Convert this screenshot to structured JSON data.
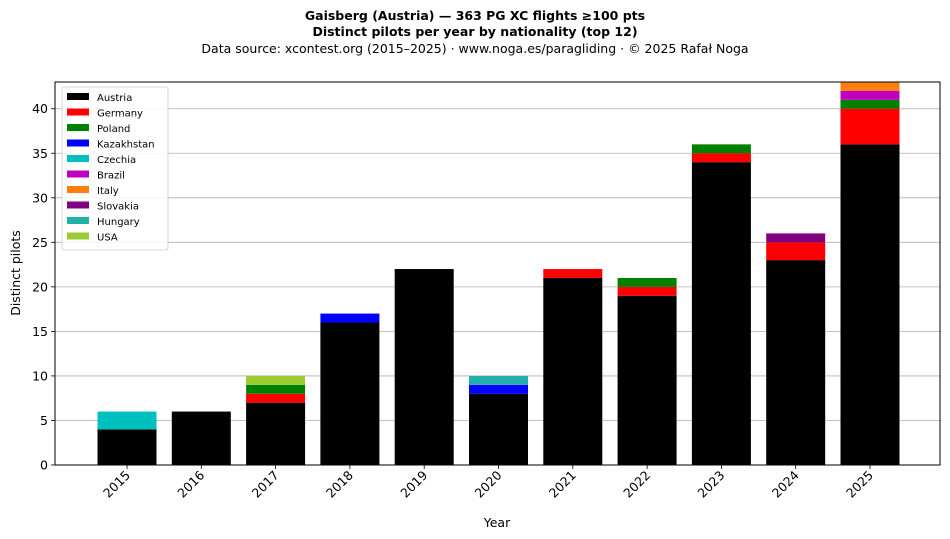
{
  "title": "Gaisberg (Austria)  —  363 PG XC flights ≥100 pts",
  "subtitle": "Distinct pilots per year by nationality (top 12)",
  "source_line": "Data source: xcontest.org (2015–2025)  ·  www.noga.es/paragliding  ·  © 2025 Rafał Noga",
  "chart_data": {
    "type": "bar",
    "stacked": true,
    "categories": [
      "2015",
      "2016",
      "2017",
      "2018",
      "2019",
      "2020",
      "2021",
      "2022",
      "2023",
      "2024",
      "2025"
    ],
    "series": [
      {
        "name": "Austria",
        "color": "#000000",
        "values": [
          4,
          6,
          7,
          16,
          22,
          8,
          21,
          19,
          34,
          23,
          36
        ]
      },
      {
        "name": "Germany",
        "color": "#ff0000",
        "values": [
          0,
          0,
          1,
          0,
          0,
          0,
          1,
          1,
          1,
          2,
          4
        ]
      },
      {
        "name": "Poland",
        "color": "#008000",
        "values": [
          0,
          0,
          1,
          0,
          0,
          0,
          0,
          1,
          1,
          0,
          1
        ]
      },
      {
        "name": "Kazakhstan",
        "color": "#0000ff",
        "values": [
          0,
          0,
          0,
          1,
          0,
          1,
          0,
          0,
          0,
          0,
          0
        ]
      },
      {
        "name": "Czechia",
        "color": "#00bfbf",
        "values": [
          2,
          0,
          0,
          0,
          0,
          0,
          0,
          0,
          0,
          0,
          0
        ]
      },
      {
        "name": "Brazil",
        "color": "#bf00bf",
        "values": [
          0,
          0,
          0,
          0,
          0,
          0,
          0,
          0,
          0,
          0,
          1
        ]
      },
      {
        "name": "Italy",
        "color": "#ff7f0e",
        "values": [
          0,
          0,
          0,
          0,
          0,
          0,
          0,
          0,
          0,
          0,
          1
        ]
      },
      {
        "name": "Slovakia",
        "color": "#800080",
        "values": [
          0,
          0,
          0,
          0,
          0,
          0,
          0,
          0,
          0,
          1,
          0
        ]
      },
      {
        "name": "Hungary",
        "color": "#20b2aa",
        "values": [
          0,
          0,
          0,
          0,
          0,
          1,
          0,
          0,
          0,
          0,
          0
        ]
      },
      {
        "name": "USA",
        "color": "#9acd32",
        "values": [
          0,
          0,
          1,
          0,
          0,
          0,
          0,
          0,
          0,
          0,
          0
        ]
      }
    ],
    "xlabel": "Year",
    "ylabel": "Distinct pilots",
    "ylim": [
      0,
      43
    ],
    "yticks": [
      0,
      5,
      10,
      15,
      20,
      25,
      30,
      35,
      40
    ],
    "grid": "horizontal",
    "legend_position": "top-left"
  }
}
